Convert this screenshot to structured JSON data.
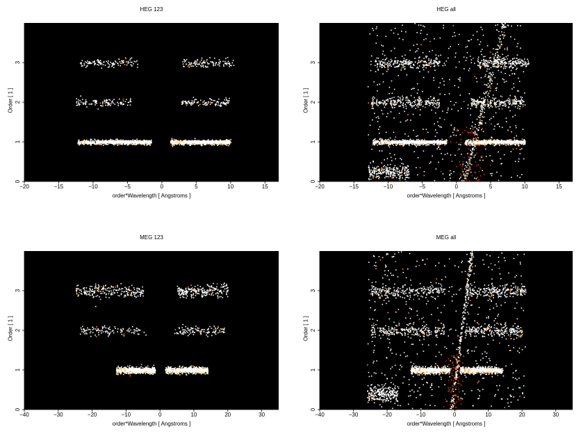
{
  "chart_data": [
    {
      "type": "scatter",
      "title": "HEG 123",
      "xlabel": "order*Wavelength [ Angstroms ]",
      "ylabel": "Order [ 1 ]",
      "xlim": [
        -20,
        17
      ],
      "ylim": [
        0,
        4
      ],
      "xticks": [
        -20,
        -15,
        -10,
        -5,
        0,
        5,
        10,
        15
      ],
      "yticks": [
        0,
        1,
        2,
        3
      ],
      "background": "#000000",
      "point_colors": [
        "#ffffff",
        "#ffe08a",
        "#ff9a1a",
        "#c83a00"
      ],
      "clusters": [
        {
          "order": 1,
          "xmin": -12.3,
          "xmax": -1.5,
          "spread": 0.03,
          "density": "high"
        },
        {
          "order": 1,
          "xmin": 1.2,
          "xmax": 10.0,
          "spread": 0.03,
          "density": "high"
        },
        {
          "order": 2,
          "xmin": -12.5,
          "xmax": -4.5,
          "spread": 0.05,
          "density": "low"
        },
        {
          "order": 2,
          "xmin": 2.8,
          "xmax": 9.8,
          "spread": 0.05,
          "density": "low"
        },
        {
          "order": 3,
          "xmin": -12.0,
          "xmax": -3.5,
          "spread": 0.06,
          "density": "low"
        },
        {
          "order": 3,
          "xmin": 3.0,
          "xmax": 10.5,
          "spread": 0.05,
          "density": "low"
        }
      ]
    },
    {
      "type": "scatter",
      "title": "HEG all",
      "xlabel": "order*Wavelength [ Angstroms ]",
      "ylabel": "Order [ 1 ]",
      "xlim": [
        -20,
        17
      ],
      "ylim": [
        0,
        4
      ],
      "xticks": [
        -20,
        -15,
        -10,
        -5,
        0,
        5,
        10,
        15
      ],
      "yticks": [
        0,
        1,
        2,
        3
      ],
      "background": "#000000",
      "point_colors": [
        "#ffffff",
        "#ffe08a",
        "#ff9a1a",
        "#c83a00"
      ],
      "clusters": [
        {
          "order": 1,
          "xmin": -12.3,
          "xmax": -1.5,
          "spread": 0.03,
          "density": "high"
        },
        {
          "order": 1,
          "xmin": 1.2,
          "xmax": 10.0,
          "spread": 0.03,
          "density": "high"
        },
        {
          "order": 2,
          "xmin": -12.5,
          "xmax": -2.5,
          "spread": 0.06,
          "density": "medium"
        },
        {
          "order": 2,
          "xmin": 2.0,
          "xmax": 10.0,
          "spread": 0.06,
          "density": "medium"
        },
        {
          "order": 3,
          "xmin": -12.0,
          "xmax": -2.5,
          "spread": 0.07,
          "density": "medium"
        },
        {
          "order": 3,
          "xmin": 3.0,
          "xmax": 10.5,
          "spread": 0.07,
          "density": "medium"
        },
        {
          "order": 0.25,
          "xmin": -13.0,
          "xmax": -7.0,
          "spread": 0.08,
          "density": "medium"
        }
      ],
      "background_fill": {
        "xmin": -13.0,
        "xmax": 10.0,
        "density": "medium"
      },
      "diagonal_streak": {
        "x0": 1.0,
        "y0": 0.0,
        "x1": 7.0,
        "y1": 4.0
      }
    },
    {
      "type": "scatter",
      "title": "MEG 123",
      "xlabel": "order*Wavelength [ Angstroms ]",
      "ylabel": "Order [ 1 ]",
      "xlim": [
        -40,
        35
      ],
      "ylim": [
        0,
        4
      ],
      "xticks": [
        -40,
        -30,
        -20,
        -10,
        0,
        10,
        20,
        30
      ],
      "yticks": [
        0,
        1,
        2,
        3
      ],
      "background": "#000000",
      "point_colors": [
        "#ffffff",
        "#ffe08a",
        "#ff9a1a",
        "#c83a00"
      ],
      "clusters": [
        {
          "order": 1,
          "xmin": -13.0,
          "xmax": -1.5,
          "spread": 0.04,
          "density": "high"
        },
        {
          "order": 1,
          "xmin": 1.5,
          "xmax": 14.0,
          "spread": 0.04,
          "density": "high"
        },
        {
          "order": 2,
          "xmin": -24.0,
          "xmax": -4.0,
          "spread": 0.06,
          "density": "low"
        },
        {
          "order": 2,
          "xmin": 4.0,
          "xmax": 19.0,
          "spread": 0.06,
          "density": "low"
        },
        {
          "order": 3,
          "xmin": -25.0,
          "xmax": -5.0,
          "spread": 0.08,
          "density": "medium"
        },
        {
          "order": 3,
          "xmin": 5.0,
          "xmax": 20.0,
          "spread": 0.08,
          "density": "medium"
        }
      ]
    },
    {
      "type": "scatter",
      "title": "MEG all",
      "xlabel": "order*Wavelength [ Angstroms ]",
      "ylabel": "Order [ 1 ]",
      "xlim": [
        -40,
        35
      ],
      "ylim": [
        0,
        4
      ],
      "xticks": [
        -40,
        -30,
        -20,
        -10,
        0,
        10,
        20,
        30
      ],
      "yticks": [
        0,
        1,
        2,
        3
      ],
      "background": "#000000",
      "point_colors": [
        "#ffffff",
        "#ffe08a",
        "#ff9a1a",
        "#c83a00"
      ],
      "clusters": [
        {
          "order": 1,
          "xmin": -13.0,
          "xmax": -1.5,
          "spread": 0.04,
          "density": "high"
        },
        {
          "order": 1,
          "xmin": 1.5,
          "xmax": 14.0,
          "spread": 0.04,
          "density": "high"
        },
        {
          "order": 2,
          "xmin": -25.0,
          "xmax": -3.0,
          "spread": 0.07,
          "density": "medium"
        },
        {
          "order": 2,
          "xmin": 3.0,
          "xmax": 20.0,
          "spread": 0.07,
          "density": "medium"
        },
        {
          "order": 3,
          "xmin": -25.0,
          "xmax": -3.0,
          "spread": 0.08,
          "density": "medium"
        },
        {
          "order": 3,
          "xmin": 3.0,
          "xmax": 21.0,
          "spread": 0.08,
          "density": "medium"
        },
        {
          "order": 0.4,
          "xmin": -26.0,
          "xmax": -17.0,
          "spread": 0.1,
          "density": "medium"
        }
      ],
      "background_fill": {
        "xmin": -26.0,
        "xmax": 21.0,
        "density": "medium"
      },
      "diagonal_streak": {
        "x0": -1.0,
        "y0": 0.0,
        "x1": 5.0,
        "y1": 4.0
      }
    }
  ]
}
